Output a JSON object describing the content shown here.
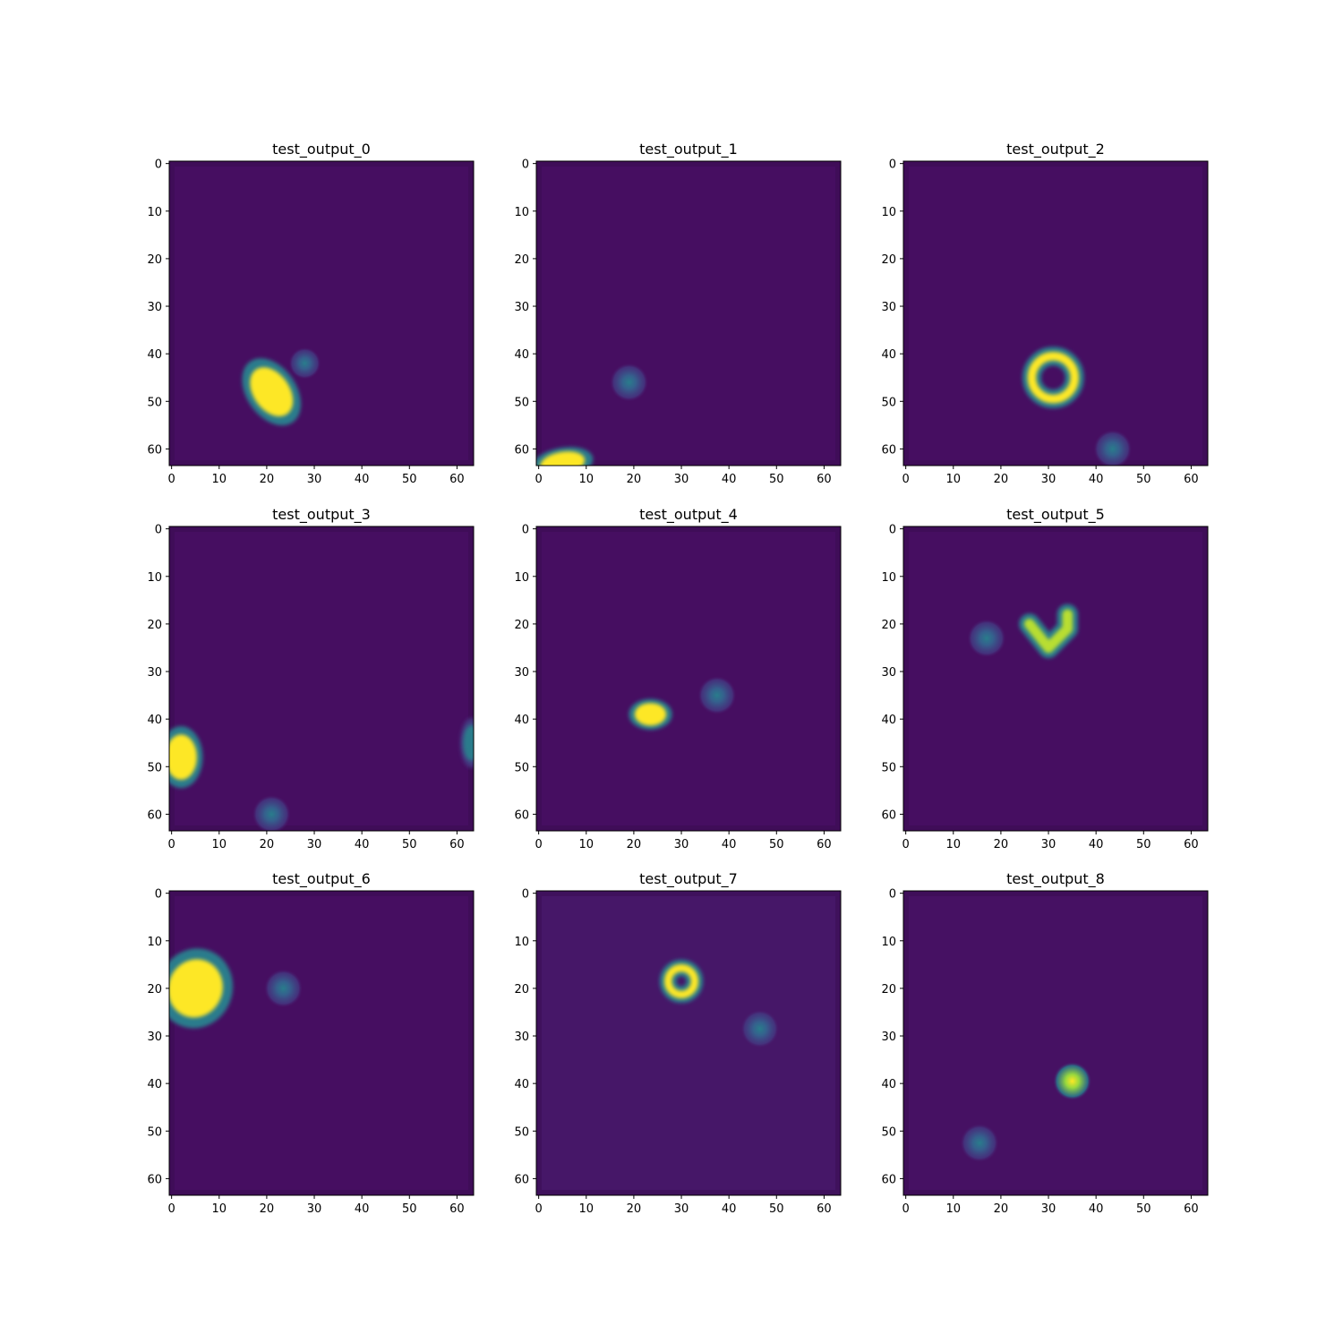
{
  "figure": {
    "colormap": "viridis",
    "colors": {
      "background_low": "#471365",
      "frame": "#3a0d52",
      "blob_mid": "#21918c",
      "blob_high": "#fde725",
      "blob_green": "#5ec962"
    }
  },
  "chart_data": [
    {
      "type": "heatmap",
      "title": "test_output_0",
      "xlim": [
        0,
        63
      ],
      "ylim": [
        63,
        0
      ],
      "xticks": [
        0,
        10,
        20,
        30,
        40,
        50,
        60
      ],
      "yticks": [
        0,
        10,
        20,
        30,
        40,
        50,
        60
      ],
      "grid": false,
      "background_level": 0.05,
      "features": [
        {
          "kind": "elongated-blob",
          "x": 21,
          "y": 48,
          "level": 1.0,
          "extent_x": 4,
          "extent_y": 6,
          "angle": -35
        },
        {
          "kind": "blob",
          "x": 28,
          "y": 42,
          "level": 0.45,
          "extent": 2.5
        }
      ]
    },
    {
      "type": "heatmap",
      "title": "test_output_1",
      "xlim": [
        0,
        63
      ],
      "ylim": [
        63,
        0
      ],
      "xticks": [
        0,
        10,
        20,
        30,
        40,
        50,
        60
      ],
      "yticks": [
        0,
        10,
        20,
        30,
        40,
        50,
        60
      ],
      "grid": false,
      "background_level": 0.05,
      "features": [
        {
          "kind": "blob",
          "x": 19,
          "y": 46,
          "level": 0.45,
          "extent": 3
        },
        {
          "kind": "elongated-blob",
          "x": 5,
          "y": 63,
          "level": 1.0,
          "extent_x": 5,
          "extent_y": 2.5,
          "angle": -10
        }
      ]
    },
    {
      "type": "heatmap",
      "title": "test_output_2",
      "xlim": [
        0,
        63
      ],
      "ylim": [
        63,
        0
      ],
      "xticks": [
        0,
        10,
        20,
        30,
        40,
        50,
        60
      ],
      "yticks": [
        0,
        10,
        20,
        30,
        40,
        50,
        60
      ],
      "grid": false,
      "background_level": 0.05,
      "features": [
        {
          "kind": "ring",
          "x": 31,
          "y": 45,
          "level": 1.0,
          "radius": 4.5,
          "thickness": 1.8
        },
        {
          "kind": "blob",
          "x": 43.5,
          "y": 60,
          "level": 0.45,
          "extent": 3
        }
      ]
    },
    {
      "type": "heatmap",
      "title": "test_output_3",
      "xlim": [
        0,
        63
      ],
      "ylim": [
        63,
        0
      ],
      "xticks": [
        0,
        10,
        20,
        30,
        40,
        50,
        60
      ],
      "yticks": [
        0,
        10,
        20,
        30,
        40,
        50,
        60
      ],
      "grid": false,
      "background_level": 0.05,
      "features": [
        {
          "kind": "elongated-blob",
          "x": 2,
          "y": 48,
          "level": 1.0,
          "extent_x": 3.5,
          "extent_y": 5,
          "angle": 0
        },
        {
          "kind": "blob",
          "x": 21,
          "y": 60,
          "level": 0.45,
          "extent": 3
        },
        {
          "kind": "elongated-blob",
          "x": 63,
          "y": 45,
          "level": 0.45,
          "extent_x": 1.8,
          "extent_y": 4,
          "angle": 0
        }
      ]
    },
    {
      "type": "heatmap",
      "title": "test_output_4",
      "xlim": [
        0,
        63
      ],
      "ylim": [
        63,
        0
      ],
      "xticks": [
        0,
        10,
        20,
        30,
        40,
        50,
        60
      ],
      "yticks": [
        0,
        10,
        20,
        30,
        40,
        50,
        60
      ],
      "grid": false,
      "background_level": 0.05,
      "features": [
        {
          "kind": "elongated-blob",
          "x": 23.5,
          "y": 39,
          "level": 1.0,
          "extent_x": 3.5,
          "extent_y": 2.5,
          "angle": 0
        },
        {
          "kind": "blob",
          "x": 37.5,
          "y": 35,
          "level": 0.45,
          "extent": 3
        }
      ]
    },
    {
      "type": "heatmap",
      "title": "test_output_5",
      "xlim": [
        0,
        63
      ],
      "ylim": [
        63,
        0
      ],
      "xticks": [
        0,
        10,
        20,
        30,
        40,
        50,
        60
      ],
      "yticks": [
        0,
        10,
        20,
        30,
        40,
        50,
        60
      ],
      "grid": false,
      "background_level": 0.05,
      "features": [
        {
          "kind": "blob",
          "x": 17,
          "y": 23,
          "level": 0.45,
          "extent": 3
        },
        {
          "kind": "stroke",
          "points": [
            [
              26,
              20
            ],
            [
              30,
              25
            ],
            [
              34,
              21
            ],
            [
              34,
              18
            ]
          ],
          "level": 0.9,
          "width": 2.2
        }
      ]
    },
    {
      "type": "heatmap",
      "title": "test_output_6",
      "xlim": [
        0,
        63
      ],
      "ylim": [
        63,
        0
      ],
      "xticks": [
        0,
        10,
        20,
        30,
        40,
        50,
        60
      ],
      "yticks": [
        0,
        10,
        20,
        30,
        40,
        50,
        60
      ],
      "grid": false,
      "background_level": 0.05,
      "features": [
        {
          "kind": "elongated-blob",
          "x": 5,
          "y": 20,
          "level": 1.0,
          "extent_x": 6,
          "extent_y": 6.5,
          "angle": 20
        },
        {
          "kind": "blob",
          "x": 23.5,
          "y": 20,
          "level": 0.45,
          "extent": 3
        }
      ]
    },
    {
      "type": "heatmap",
      "title": "test_output_7",
      "xlim": [
        0,
        63
      ],
      "ylim": [
        63,
        0
      ],
      "xticks": [
        0,
        10,
        20,
        30,
        40,
        50,
        60
      ],
      "yticks": [
        0,
        10,
        20,
        30,
        40,
        50,
        60
      ],
      "grid": false,
      "background_level": 0.08,
      "features": [
        {
          "kind": "ring",
          "x": 30,
          "y": 18.5,
          "level": 1.0,
          "radius": 2.8,
          "thickness": 1.6
        },
        {
          "kind": "blob",
          "x": 46.5,
          "y": 28.5,
          "level": 0.45,
          "extent": 3
        }
      ]
    },
    {
      "type": "heatmap",
      "title": "test_output_8",
      "xlim": [
        0,
        63
      ],
      "ylim": [
        63,
        0
      ],
      "xticks": [
        0,
        10,
        20,
        30,
        40,
        50,
        60
      ],
      "yticks": [
        0,
        10,
        20,
        30,
        40,
        50,
        60
      ],
      "grid": false,
      "background_level": 0.06,
      "features": [
        {
          "kind": "blob",
          "x": 35,
          "y": 39.5,
          "level": 1.0,
          "extent": 3
        },
        {
          "kind": "blob",
          "x": 15.5,
          "y": 52.5,
          "level": 0.45,
          "extent": 3
        }
      ]
    }
  ]
}
